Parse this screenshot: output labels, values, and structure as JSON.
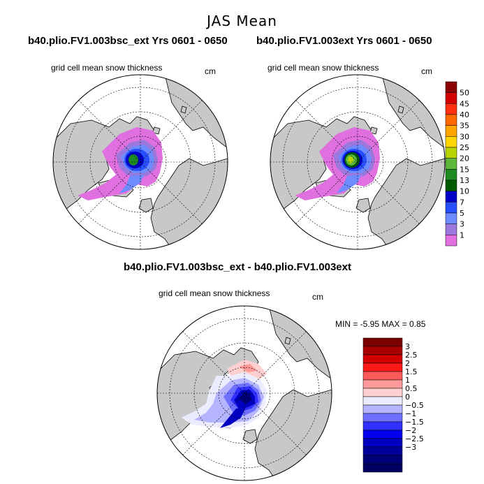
{
  "figure": {
    "main_title": "JAS Mean",
    "panels": [
      {
        "title": "b40.plio.FV1.003bsc_ext  Yrs 0601 - 0650",
        "subtitle": "grid cell mean snow thickness",
        "units": "cm"
      },
      {
        "title": "b40.plio.FV1.003ext  Yrs 0601 - 0650",
        "subtitle": "grid cell mean snow thickness",
        "units": "cm"
      },
      {
        "title": "b40.plio.FV1.003bsc_ext - b40.plio.FV1.003ext",
        "subtitle": "grid cell mean snow thickness",
        "units": "cm"
      }
    ],
    "minmax_text": "MIN =   -5.95 MAX =    0.85"
  },
  "colorbar_top": {
    "labels": [
      "50",
      "45",
      "40",
      "35",
      "30",
      "25",
      "20",
      "15",
      "13",
      "10",
      "7",
      "5",
      "3",
      "1"
    ],
    "colors": [
      "#8b0000",
      "#d40000",
      "#ff3010",
      "#ff6a00",
      "#ffa500",
      "#ffd700",
      "#b8d400",
      "#5db83a",
      "#1e8b22",
      "#005a00",
      "#0000c8",
      "#2850ff",
      "#6e8cff",
      "#9c78dc",
      "#e070e0"
    ]
  },
  "colorbar_bottom": {
    "labels": [
      "3",
      "2.5",
      "2",
      "1.5",
      "1",
      "0.5",
      "0",
      "−0.5",
      "−1",
      "−1.5",
      "−2",
      "−2.5",
      "−3"
    ],
    "colors": [
      "#7a0000",
      "#a80000",
      "#d40000",
      "#ff1a1a",
      "#ff5a5a",
      "#ff9a9a",
      "#ffd0d0",
      "#ececff",
      "#b4b4ff",
      "#7070ff",
      "#3030ff",
      "#0000ee",
      "#0000c0",
      "#00009a",
      "#000078",
      "#000060"
    ]
  },
  "colors": {
    "land": "#c8c8c8",
    "ocean": "#ffffff",
    "outline": "#000000"
  }
}
